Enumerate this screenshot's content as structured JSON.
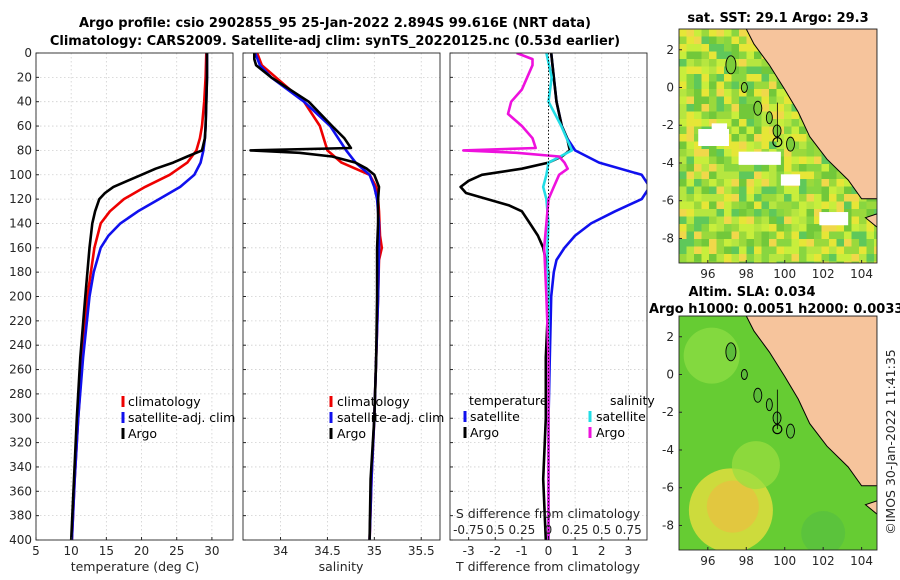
{
  "figure": {
    "title_line1": "Argo profile: csio 2902855_95 25-Jan-2022 2.894S 99.616E (NRT data)",
    "title_line2": "Climatology: CARS2009. Satellite-adj clim: synTS_20220125.nc (0.53d earlier)",
    "stamp": "©IMOS 30-Jan-2022 11:41:35"
  },
  "colors": {
    "climatology": "#ee0000",
    "satellite": "#1010ee",
    "argo": "#000000",
    "salinity_satellite": "#22dde6",
    "salinity_argo": "#ee11dd",
    "land": "#f6c49c"
  },
  "chart_data": [
    {
      "type": "line",
      "name": "temperature",
      "xlabel": "temperature (deg C)",
      "xlim": [
        5,
        33
      ],
      "xticks": [
        5,
        10,
        15,
        20,
        25,
        30
      ],
      "ylim": [
        0,
        400
      ],
      "yticks": [
        0,
        20,
        40,
        60,
        80,
        100,
        120,
        140,
        160,
        180,
        200,
        220,
        240,
        260,
        280,
        300,
        320,
        340,
        360,
        380,
        400
      ],
      "legend": [
        "climatology",
        "satellite-adj. clim",
        "Argo"
      ],
      "series": [
        {
          "name": "climatology",
          "depth": [
            0,
            20,
            40,
            60,
            70,
            80,
            90,
            100,
            110,
            120,
            130,
            140,
            160,
            180,
            200,
            250,
            300,
            350,
            400
          ],
          "values": [
            29.2,
            29.1,
            28.9,
            28.6,
            28.3,
            27.8,
            26.5,
            24.0,
            20.5,
            17.5,
            15.5,
            14.2,
            13.3,
            12.8,
            12.3,
            11.6,
            11.0,
            10.5,
            10.1
          ]
        },
        {
          "name": "satellite-adj. clim",
          "depth": [
            0,
            20,
            40,
            60,
            70,
            80,
            90,
            100,
            110,
            120,
            130,
            140,
            150,
            160,
            180,
            200,
            250,
            300,
            350,
            400
          ],
          "values": [
            29.3,
            29.3,
            29.2,
            29.1,
            29.0,
            28.8,
            28.4,
            27.5,
            25.5,
            22.5,
            19.5,
            17.0,
            15.3,
            14.2,
            13.2,
            12.6,
            11.7,
            11.0,
            10.5,
            10.1
          ]
        },
        {
          "name": "Argo",
          "depth": [
            0,
            20,
            40,
            60,
            70,
            80,
            85,
            90,
            95,
            100,
            105,
            110,
            115,
            120,
            130,
            140,
            150,
            160,
            180,
            200,
            250,
            300,
            350,
            400
          ],
          "values": [
            29.3,
            29.3,
            29.2,
            29.1,
            29.0,
            28.6,
            26.5,
            24.5,
            22.0,
            20.0,
            18.0,
            16.0,
            14.8,
            14.0,
            13.4,
            13.0,
            12.8,
            12.6,
            12.3,
            12.0,
            11.3,
            10.8,
            10.4,
            10.0
          ]
        }
      ]
    },
    {
      "type": "line",
      "name": "salinity",
      "xlabel": "salinity",
      "xlim": [
        33.6,
        35.7
      ],
      "xticks": [
        34,
        34.5,
        35,
        35.5
      ],
      "ylim": [
        0,
        400
      ],
      "legend": [
        "climatology",
        "satellite-adj. clim",
        "Argo"
      ],
      "series": [
        {
          "name": "climatology",
          "depth": [
            0,
            10,
            20,
            40,
            60,
            80,
            90,
            100,
            110,
            120,
            130,
            150,
            160,
            170,
            200,
            250,
            300,
            350,
            400
          ],
          "values": [
            33.75,
            33.8,
            33.95,
            34.25,
            34.42,
            34.5,
            34.65,
            34.95,
            35.02,
            35.04,
            35.05,
            35.06,
            35.08,
            35.05,
            35.04,
            35.02,
            35.0,
            34.97,
            34.95
          ]
        },
        {
          "name": "satellite-adj. clim",
          "depth": [
            0,
            10,
            20,
            40,
            60,
            80,
            90,
            100,
            110,
            120,
            140,
            160,
            200,
            250,
            300,
            350,
            400
          ],
          "values": [
            33.73,
            33.78,
            33.9,
            34.25,
            34.53,
            34.7,
            34.8,
            34.95,
            35.0,
            35.03,
            35.05,
            35.05,
            35.04,
            35.02,
            35.0,
            34.97,
            34.95
          ]
        },
        {
          "name": "Argo",
          "depth": [
            0,
            5,
            10,
            20,
            40,
            60,
            70,
            78,
            80,
            82,
            85,
            90,
            95,
            100,
            110,
            120,
            140,
            160,
            200,
            250,
            300,
            350,
            400
          ],
          "values": [
            33.72,
            33.72,
            33.74,
            33.9,
            34.3,
            34.55,
            34.68,
            34.75,
            33.68,
            34.2,
            34.55,
            34.8,
            34.92,
            35.0,
            35.05,
            35.04,
            35.04,
            35.03,
            35.03,
            35.02,
            35.0,
            34.96,
            34.95
          ]
        }
      ]
    },
    {
      "type": "line",
      "name": "difference",
      "xlabel": "T difference from climatology",
      "xlim": [
        -3.7,
        3.7
      ],
      "xticks": [
        -3,
        -2,
        -1,
        0,
        1,
        2,
        3
      ],
      "top_axis_label": "S difference from climatology",
      "top_ticks": [
        "-0.75",
        "0.5",
        "0.25",
        "0",
        "0.25",
        "0.5",
        "0.75"
      ],
      "legend_left_title": "temperature",
      "legend_right_title": "salinity",
      "legend_entries": [
        "satellite",
        "Argo",
        "satellite",
        "Argo"
      ],
      "ylim": [
        0,
        400
      ],
      "series": [
        {
          "name": "T satellite",
          "depth": [
            0,
            20,
            40,
            60,
            70,
            80,
            90,
            100,
            110,
            120,
            130,
            140,
            150,
            160,
            170,
            180,
            200,
            250,
            300,
            350,
            400
          ],
          "values": [
            0.1,
            0.2,
            0.3,
            0.5,
            0.7,
            1.0,
            1.9,
            3.5,
            3.8,
            3.5,
            2.5,
            1.6,
            1.0,
            0.6,
            0.3,
            0.2,
            0.1,
            0.05,
            0.0,
            0.0,
            0.0
          ]
        },
        {
          "name": "T Argo",
          "depth": [
            0,
            20,
            40,
            60,
            70,
            80,
            85,
            90,
            95,
            100,
            105,
            110,
            115,
            120,
            125,
            130,
            140,
            150,
            160,
            170,
            180,
            200,
            250,
            300,
            350,
            400
          ],
          "values": [
            0.1,
            0.2,
            0.3,
            0.5,
            0.7,
            0.8,
            0.5,
            0.0,
            -1.0,
            -2.5,
            -3.0,
            -3.3,
            -3.1,
            -2.3,
            -1.5,
            -1.0,
            -0.7,
            -0.4,
            -0.2,
            -0.1,
            0.0,
            0.0,
            -0.1,
            -0.1,
            -0.2,
            -0.1
          ]
        },
        {
          "name": "S satellite",
          "depth": [
            0,
            20,
            40,
            60,
            80,
            90,
            100,
            110,
            120,
            140,
            160,
            200,
            250,
            300,
            350,
            400
          ],
          "values": [
            -0.02,
            0.03,
            0.0,
            0.12,
            0.22,
            0.0,
            -0.02,
            -0.05,
            -0.02,
            0.0,
            -0.01,
            0.0,
            0.0,
            0.0,
            0.0,
            0.0
          ]
        },
        {
          "name": "S Argo",
          "depth": [
            0,
            5,
            10,
            20,
            30,
            40,
            50,
            60,
            70,
            78,
            80,
            82,
            85,
            90,
            95,
            100,
            110,
            120,
            140,
            160,
            200,
            250,
            300,
            350,
            400
          ],
          "values": [
            -0.3,
            -0.15,
            -0.15,
            -0.2,
            -0.25,
            -0.35,
            -0.38,
            -0.25,
            -0.15,
            -0.12,
            -0.8,
            -0.3,
            0.1,
            0.15,
            0.18,
            0.1,
            0.05,
            0.0,
            -0.02,
            -0.04,
            -0.02,
            0.0,
            0.0,
            0.0,
            0.0
          ]
        }
      ]
    },
    {
      "type": "heatmap",
      "name": "sst_map",
      "title": "sat. SST: 29.1 Argo: 29.3",
      "xticks": [
        96,
        98,
        100,
        102,
        104
      ],
      "yticks": [
        2,
        0,
        -2,
        -4,
        -6,
        -8
      ],
      "xlim": [
        94.5,
        104.8
      ],
      "ylim": [
        -9.3,
        3.1
      ],
      "profile_location": {
        "lon": 99.616,
        "lat": -2.894
      }
    },
    {
      "type": "heatmap",
      "name": "sla_map",
      "title": "Altim. SLA: 0.034",
      "subtitle": "Argo h1000: 0.0051 h2000: 0.0033",
      "xticks": [
        96,
        98,
        100,
        102,
        104
      ],
      "yticks": [
        2,
        0,
        -2,
        -4,
        -6,
        -8
      ],
      "xlim": [
        94.5,
        104.8
      ],
      "ylim": [
        -9.3,
        3.1
      ],
      "profile_location": {
        "lon": 99.616,
        "lat": -2.894
      }
    }
  ]
}
